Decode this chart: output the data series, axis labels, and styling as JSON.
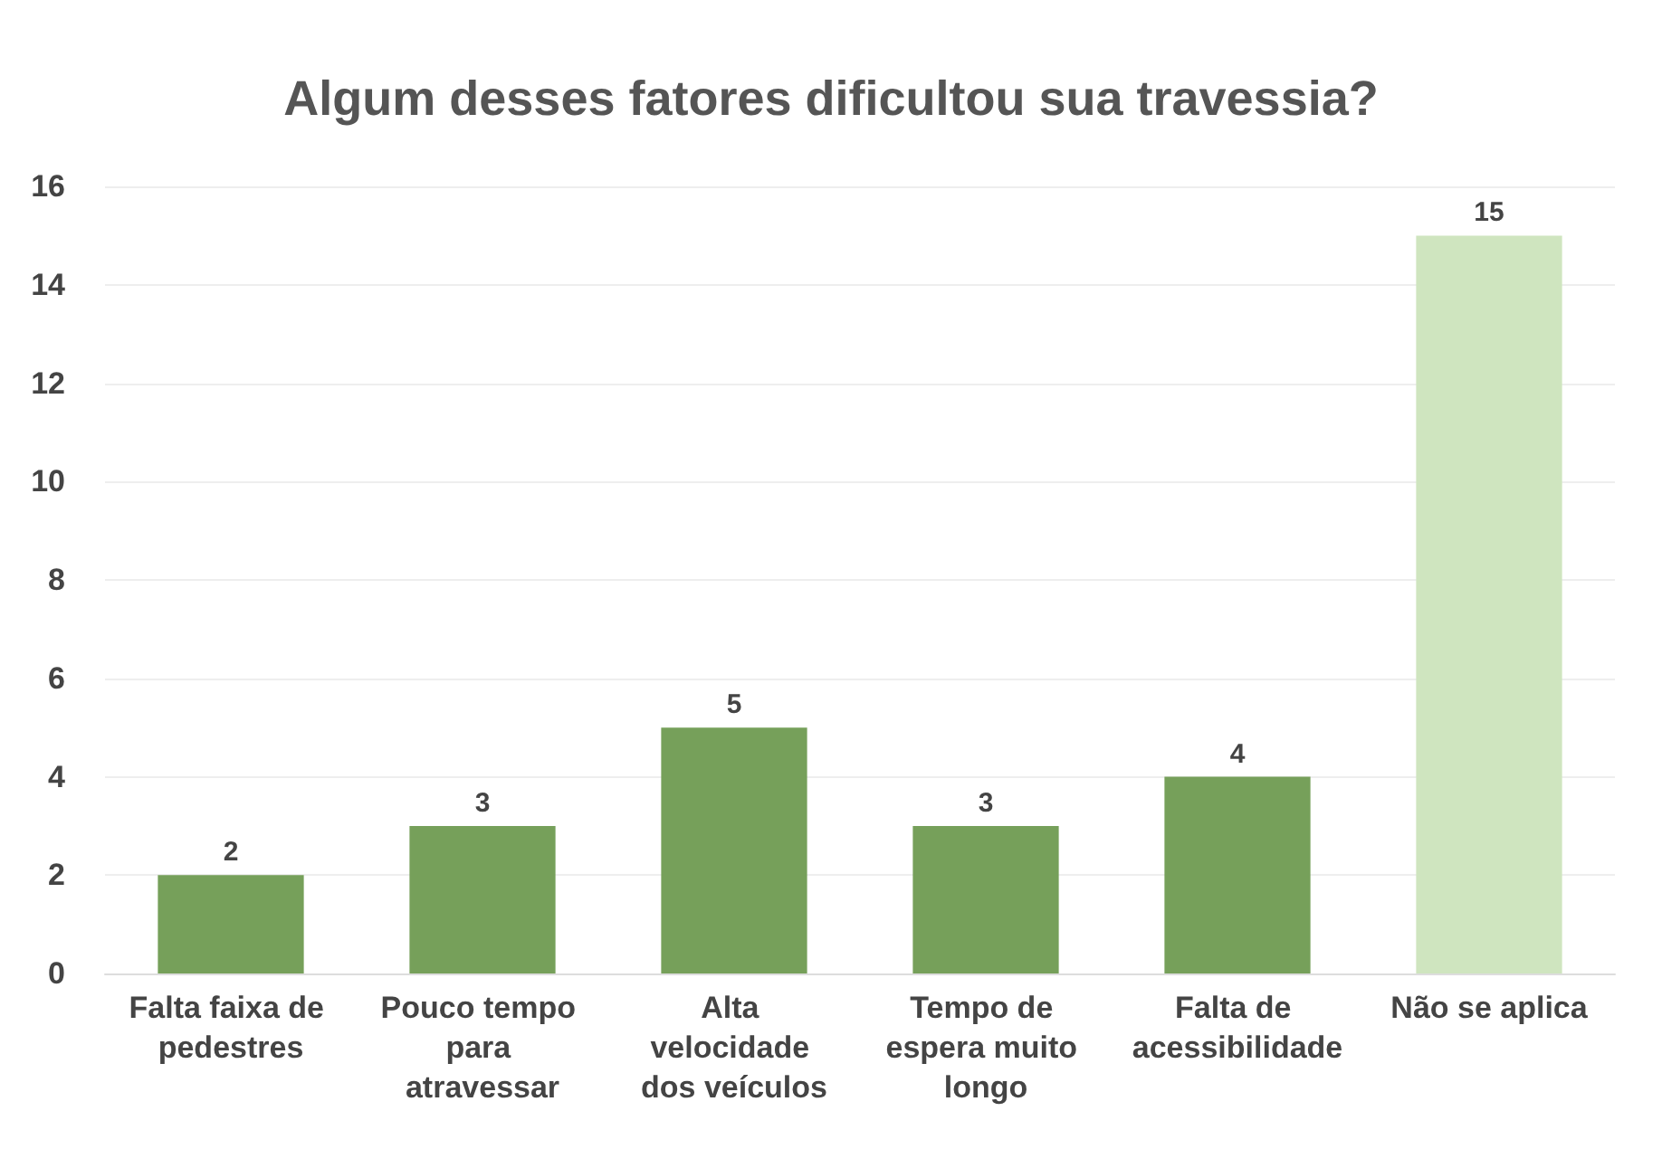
{
  "chart_data": {
    "type": "bar",
    "title": "Algum desses fatores dificultou sua travessia?",
    "categories": [
      "Falta faixa de pedestres",
      "Pouco tempo para atravessar",
      "Alta velocidade dos veículos",
      "Tempo de espera muito longo",
      "Falta de acessibilidade",
      "Não se aplica"
    ],
    "values": [
      2,
      3,
      5,
      3,
      4,
      15
    ],
    "colors": [
      "#76a05a",
      "#76a05a",
      "#76a05a",
      "#76a05a",
      "#76a05a",
      "#cfe5bf"
    ],
    "ylim": [
      0,
      16
    ],
    "yticks": [
      0,
      2,
      4,
      6,
      8,
      10,
      12,
      14,
      16
    ],
    "grid": "y",
    "data_labels": true
  }
}
